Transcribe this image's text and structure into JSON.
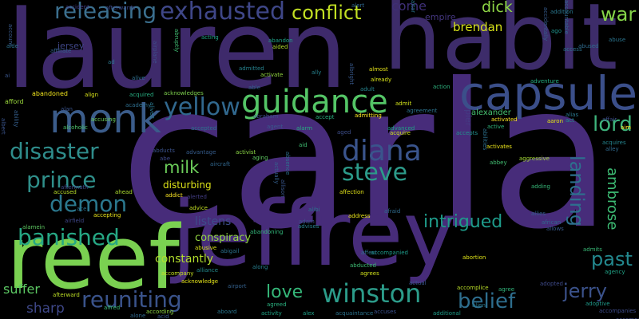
{
  "title": "",
  "words": [
    {
      "text": "carla",
      "color": "#472c7a"
    },
    {
      "text": "lauren",
      "color": "#3e2a6b"
    },
    {
      "text": "habit",
      "color": "#3d2c6a"
    },
    {
      "text": "jeffrey",
      "color": "#472c7a"
    },
    {
      "text": "reef",
      "color": "#7ad151"
    },
    {
      "text": "capsule",
      "color": "#3b4f8a"
    },
    {
      "text": "guidance",
      "color": "#54c566"
    },
    {
      "text": "monk",
      "color": "#3b5c8a"
    },
    {
      "text": "exhausted",
      "color": "#3f4788"
    },
    {
      "text": "conflict",
      "color": "#c2df23"
    },
    {
      "text": "releasing",
      "color": "#3b6f8e"
    },
    {
      "text": "yellow",
      "color": "#31688e"
    },
    {
      "text": "diana",
      "color": "#3a548c"
    },
    {
      "text": "disaster",
      "color": "#2f8d8c"
    },
    {
      "text": "steve",
      "color": "#2c9b8a"
    },
    {
      "text": "lord",
      "color": "#3eb47c"
    },
    {
      "text": "prince",
      "color": "#2f8f8a"
    },
    {
      "text": "demon",
      "color": "#2b788e"
    },
    {
      "text": "milk",
      "color": "#6ccd5a"
    },
    {
      "text": "banished",
      "color": "#26a784"
    },
    {
      "text": "intrigued",
      "color": "#1e9b8a"
    },
    {
      "text": "landing",
      "color": "#2d708e"
    },
    {
      "text": "past",
      "color": "#23888e"
    },
    {
      "text": "winston",
      "color": "#2c9c8a"
    },
    {
      "text": "reuniting",
      "color": "#3a538b"
    },
    {
      "text": "jerry",
      "color": "#3b528b"
    },
    {
      "text": "belief",
      "color": "#2e6e8e"
    },
    {
      "text": "love",
      "color": "#35b779"
    },
    {
      "text": "sharp",
      "color": "#3f4889"
    },
    {
      "text": "war",
      "color": "#86d549"
    },
    {
      "text": "dick",
      "color": "#8ed645"
    },
    {
      "text": "brendan",
      "color": "#d7e219"
    },
    {
      "text": "come",
      "color": "#3e2f76"
    },
    {
      "text": "suffer",
      "color": "#5cc863"
    },
    {
      "text": "constantly",
      "color": "#b2dd2c"
    },
    {
      "text": "conspiracy",
      "color": "#93d741"
    },
    {
      "text": "ambrose",
      "color": "#3dbc74"
    },
    {
      "text": "disturbing",
      "color": "#dde318"
    },
    {
      "text": "listens",
      "color": "#3e4c8a"
    },
    {
      "text": "empire",
      "color": "#453781"
    },
    {
      "text": "jersey",
      "color": "#404688"
    },
    {
      "text": "pier",
      "color": "#443a83"
    },
    {
      "text": "alexander",
      "color": "#46c06f"
    },
    {
      "text": "abandoned",
      "color": "#f1e51d"
    },
    {
      "text": "afford",
      "color": "#9bd93c"
    },
    {
      "text": "accepting",
      "color": "#eae51a"
    },
    {
      "text": "abduction",
      "color": "#472d7b"
    },
    {
      "text": "addition",
      "color": "#2a778e"
    },
    {
      "text": "accidentally",
      "color": "#365c8d"
    },
    {
      "text": "abuse",
      "color": "#2b758e"
    },
    {
      "text": "abused",
      "color": "#2f6c8e"
    },
    {
      "text": "access",
      "color": "#2c718e"
    },
    {
      "text": "accountable",
      "color": "#31668e"
    },
    {
      "text": "ago",
      "color": "#20928c"
    },
    {
      "text": "adventure",
      "color": "#25ac82"
    },
    {
      "text": "activated",
      "color": "#fde725"
    },
    {
      "text": "activates",
      "color": "#ece51b"
    },
    {
      "text": "acquires",
      "color": "#25848e"
    },
    {
      "text": "alley",
      "color": "#306a8e"
    },
    {
      "text": "aggressive",
      "color": "#a5db36"
    },
    {
      "text": "adding",
      "color": "#36b878"
    },
    {
      "text": "abbey",
      "color": "#42be71"
    },
    {
      "text": "aim",
      "color": "#fde725"
    },
    {
      "text": "affair",
      "color": "#3d4d8a"
    },
    {
      "text": "african",
      "color": "#31678e"
    },
    {
      "text": "allows",
      "color": "#38598c"
    },
    {
      "text": "admits",
      "color": "#39b977"
    },
    {
      "text": "agency",
      "color": "#20a386"
    },
    {
      "text": "adoptive",
      "color": "#1f9a8a"
    },
    {
      "text": "accompanies",
      "color": "#3e4c8a"
    },
    {
      "text": "abortion",
      "color": "#dfe318"
    },
    {
      "text": "adopted",
      "color": "#3e4a89"
    },
    {
      "text": "agree",
      "color": "#31b57b"
    },
    {
      "text": "alien",
      "color": "#2a788e"
    },
    {
      "text": "additional",
      "color": "#1e9c89"
    },
    {
      "text": "accomplice",
      "color": "#bade28"
    },
    {
      "text": "actual",
      "color": "#39568c"
    },
    {
      "text": "accuses",
      "color": "#3b518b"
    },
    {
      "text": "acquaintance",
      "color": "#2c738e"
    },
    {
      "text": "alex",
      "color": "#1fa088"
    },
    {
      "text": "activity",
      "color": "#20a486"
    },
    {
      "text": "agreed",
      "color": "#2ab07f"
    },
    {
      "text": "agrees",
      "color": "#d0e11c"
    },
    {
      "text": "abducted",
      "color": "#3dbc74"
    },
    {
      "text": "accompanied",
      "color": "#1e9b8a"
    },
    {
      "text": "along",
      "color": "#277f8e"
    },
    {
      "text": "affect",
      "color": "#2e6f8e"
    },
    {
      "text": "address",
      "color": "#eae51a"
    },
    {
      "text": "afraid",
      "color": "#2f6b8e"
    },
    {
      "text": "affection",
      "color": "#e2e418"
    },
    {
      "text": "aboard",
      "color": "#2a768e"
    },
    {
      "text": "according",
      "color": "#8fd744"
    },
    {
      "text": "alone",
      "color": "#30698e"
    },
    {
      "text": "acid",
      "color": "#38588c"
    },
    {
      "text": "alfred",
      "color": "#39b977"
    },
    {
      "text": "afterward",
      "color": "#bddf26"
    },
    {
      "text": "accompany",
      "color": "#c5e021"
    },
    {
      "text": "acknowledge",
      "color": "#e5e419"
    },
    {
      "text": "abusive",
      "color": "#d8e219"
    },
    {
      "text": "alliance",
      "color": "#238a8d"
    },
    {
      "text": "abigail",
      "color": "#2c728e"
    },
    {
      "text": "airport",
      "color": "#34618d"
    },
    {
      "text": "advises",
      "color": "#27808e"
    },
    {
      "text": "adam",
      "color": "#3b518b"
    },
    {
      "text": "abandoning",
      "color": "#32b67a"
    },
    {
      "text": "alibi",
      "color": "#2d708e"
    },
    {
      "text": "advice",
      "color": "#c2df23"
    },
    {
      "text": "alerted",
      "color": "#433e85"
    },
    {
      "text": "addict",
      "color": "#fde725"
    },
    {
      "text": "activist",
      "color": "#8bd646"
    },
    {
      "text": "aging",
      "color": "#5ec962"
    },
    {
      "text": "aircraft",
      "color": "#31678e"
    },
    {
      "text": "advantage",
      "color": "#365d8d"
    },
    {
      "text": "abe",
      "color": "#3e4a89"
    },
    {
      "text": "abducts",
      "color": "#3b528b"
    },
    {
      "text": "alarm",
      "color": "#27ad81"
    },
    {
      "text": "agent",
      "color": "#38588c"
    },
    {
      "text": "aid",
      "color": "#40bd72"
    },
    {
      "text": "absence",
      "color": "#2e6e8e"
    },
    {
      "text": "actually",
      "color": "#355f8d"
    },
    {
      "text": "allison",
      "color": "#39568c"
    },
    {
      "text": "adult",
      "color": "#25848e"
    },
    {
      "text": "alive",
      "color": "#2e6f8e"
    },
    {
      "text": "admitted",
      "color": "#26828e"
    },
    {
      "text": "activate",
      "color": "#93d741"
    },
    {
      "text": "ally",
      "color": "#26828e"
    },
    {
      "text": "abandon",
      "color": "#1fa187"
    },
    {
      "text": "aided",
      "color": "#b2dd2c"
    },
    {
      "text": "almost",
      "color": "#e7e419"
    },
    {
      "text": "already",
      "color": "#d8e219"
    },
    {
      "text": "action",
      "color": "#2db27d"
    },
    {
      "text": "albright",
      "color": "#38598c"
    },
    {
      "text": "acting",
      "color": "#20a386"
    },
    {
      "text": "abruptly",
      "color": "#40bd72"
    },
    {
      "text": "alert",
      "color": "#30698e"
    },
    {
      "text": "altar",
      "color": "#2a788e"
    },
    {
      "text": "aftermath",
      "color": "#3e4a89"
    },
    {
      "text": "airfield",
      "color": "#3f4788"
    },
    {
      "text": "alamein",
      "color": "#5ec962"
    },
    {
      "text": "ace",
      "color": "#2d708e"
    },
    {
      "text": "allies",
      "color": "#355e8d"
    },
    {
      "text": "alcoholic",
      "color": "#4ec36b"
    },
    {
      "text": "ahead",
      "color": "#addc30"
    },
    {
      "text": "accused",
      "color": "#b8de29"
    },
    {
      "text": "accusing",
      "color": "#6ccd5a"
    },
    {
      "text": "alan",
      "color": "#3a548c"
    },
    {
      "text": "ability",
      "color": "#355f8d"
    },
    {
      "text": "albert",
      "color": "#3a548c"
    },
    {
      "text": "academy",
      "color": "#2e6e8e"
    },
    {
      "text": "acknowledges",
      "color": "#7fd34e"
    },
    {
      "text": "acquired",
      "color": "#27ad81"
    },
    {
      "text": "align",
      "color": "#d8e219"
    },
    {
      "text": "alive2",
      "color": "#2a788e"
    },
    {
      "text": "accepted",
      "color": "#2c718e"
    },
    {
      "text": "admitting",
      "color": "#fde725"
    },
    {
      "text": "admit",
      "color": "#d2e21b"
    },
    {
      "text": "aged",
      "color": "#3d4e8a"
    },
    {
      "text": "advanced",
      "color": "#20a386"
    },
    {
      "text": "acquire",
      "color": "#d0e11c"
    },
    {
      "text": "abraham",
      "color": "#3e4c8a"
    },
    {
      "text": "accept",
      "color": "#29af7f"
    },
    {
      "text": "agreement",
      "color": "#2c738e"
    },
    {
      "text": "aaron",
      "color": "#e2e418"
    },
    {
      "text": "alias",
      "color": "#2a788e"
    },
    {
      "text": "act",
      "color": "#20928c"
    },
    {
      "text": "active",
      "color": "#2fb47c"
    },
    {
      "text": "accepts",
      "color": "#21918c"
    },
    {
      "text": "abilities",
      "color": "#2d708e"
    },
    {
      "text": "accident",
      "color": "#433e85"
    },
    {
      "text": "afterwards",
      "color": "#3e4989"
    },
    {
      "text": "account",
      "color": "#38598c"
    },
    {
      "text": "aide",
      "color": "#2d708e"
    },
    {
      "text": "affiliate",
      "color": "#34618d"
    },
    {
      "text": "ad",
      "color": "#2a768e"
    },
    {
      "text": "airplane",
      "color": "#3e4c8a"
    },
    {
      "text": "able",
      "color": "#34618d"
    },
    {
      "text": "ai",
      "color": "#39568c"
    },
    {
      "text": "accompanies2",
      "color": "#3e4c8a"
    }
  ]
}
